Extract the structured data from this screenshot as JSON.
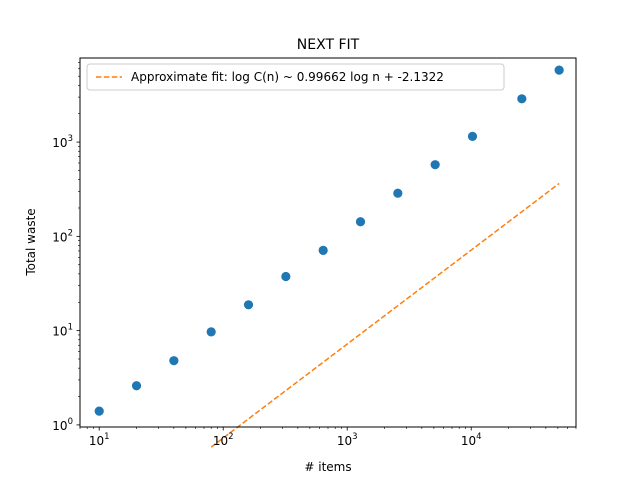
{
  "chart_data": {
    "type": "scatter",
    "title": "NEXT FIT",
    "xlabel": "# items",
    "ylabel": "Total waste",
    "xscale": "log",
    "yscale": "log",
    "xlim": [
      7,
      70000
    ],
    "ylim": [
      0.95,
      7800
    ],
    "xticks": [
      {
        "value": 10,
        "base": "10",
        "exp": "1"
      },
      {
        "value": 100,
        "base": "10",
        "exp": "2"
      },
      {
        "value": 1000,
        "base": "10",
        "exp": "3"
      },
      {
        "value": 10000,
        "base": "10",
        "exp": "4"
      }
    ],
    "yticks": [
      {
        "value": 1,
        "base": "10",
        "exp": "0"
      },
      {
        "value": 10,
        "base": "10",
        "exp": "1"
      },
      {
        "value": 100,
        "base": "10",
        "exp": "2"
      },
      {
        "value": 1000,
        "base": "10",
        "exp": "3"
      }
    ],
    "grid": false,
    "legend_position": "top-left",
    "points": {
      "color": "#1f77b4",
      "x": [
        10,
        20,
        40,
        80,
        160,
        320,
        640,
        1280,
        2560,
        5120,
        10240,
        25600,
        51200
      ],
      "y": [
        1.4,
        2.6,
        4.8,
        9.7,
        18.8,
        37.5,
        71,
        143,
        287,
        576,
        1150,
        2880,
        5800
      ]
    },
    "fit": {
      "label": "Approximate fit: log C(n) ~ 0.99662 log n + -2.1322",
      "color": "#ff7f0e",
      "slope": 0.99662,
      "intercept": -2.1322,
      "x_range": [
        80,
        51200
      ]
    }
  }
}
